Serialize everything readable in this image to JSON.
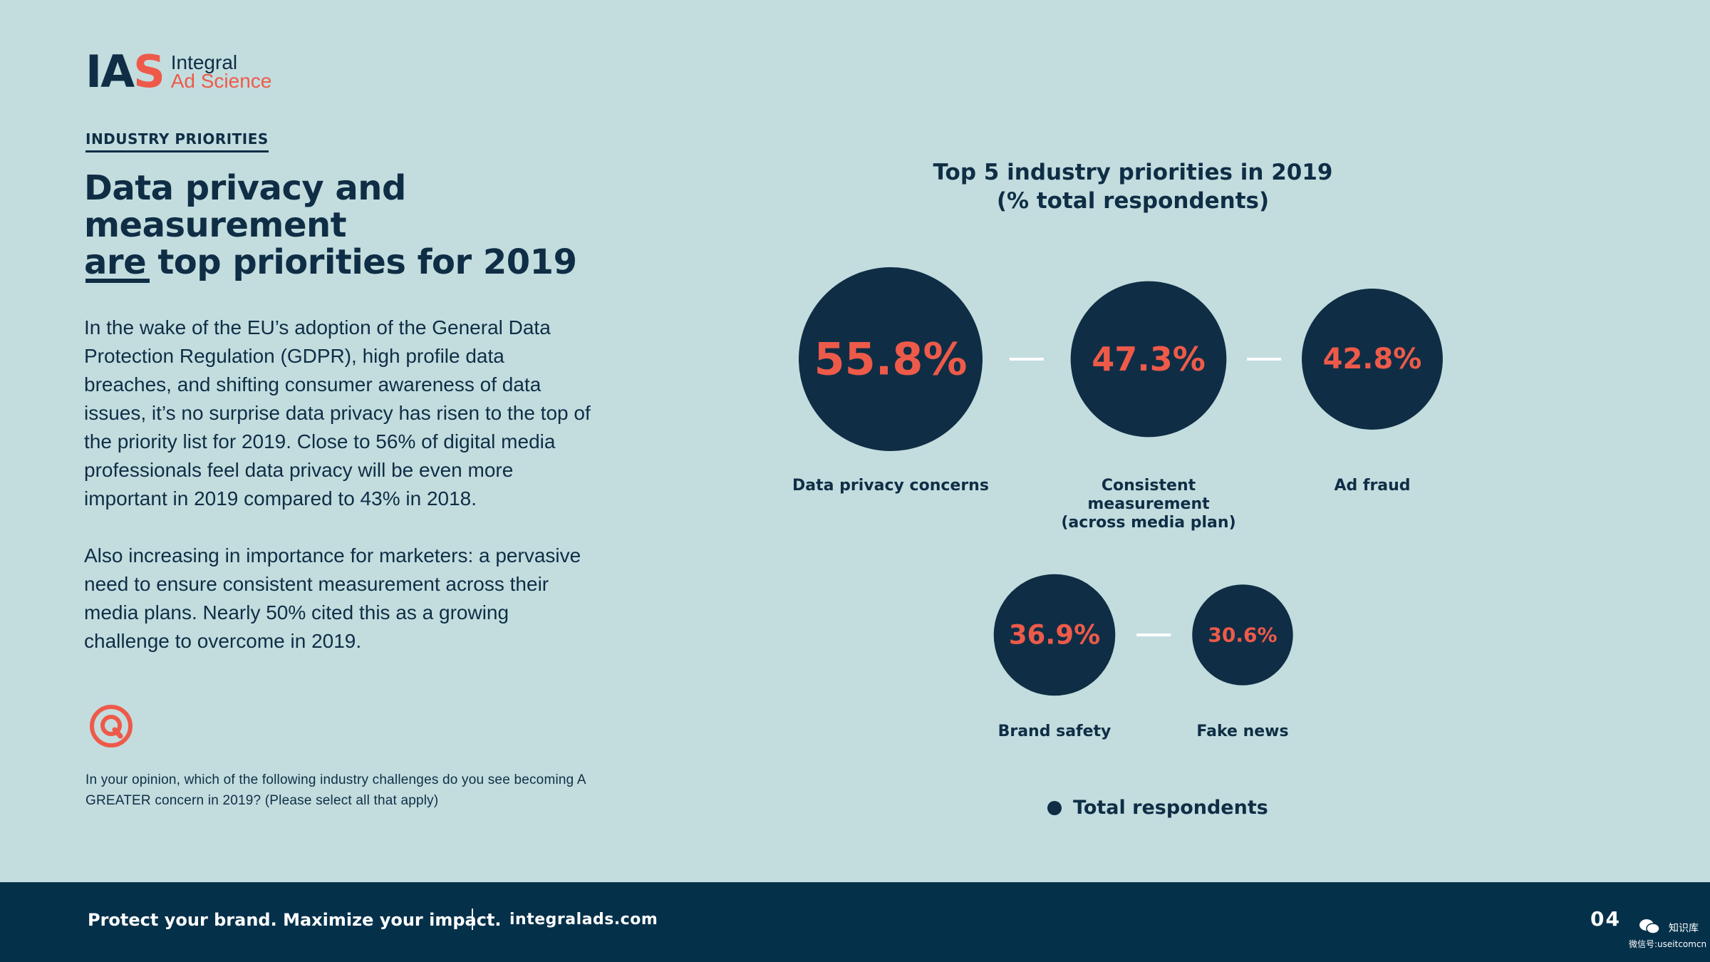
{
  "brand": {
    "logo_mark": "IAS",
    "logo_line1": "Integral",
    "logo_line2": "Ad Science"
  },
  "section_label": "INDUSTRY PRIORITIES",
  "headline": {
    "line1": "Data privacy and measurement",
    "line2": "are top priorities for 2019"
  },
  "body": {
    "paragraph1": "In the wake of the EU’s adoption of the General Data Protection Regulation (GDPR), high profile data breaches, and shifting consumer awareness of data issues, it’s no surprise data privacy has risen to the top of the priority list for 2019. Close to 56% of digital media professionals feel data privacy will be even more important in 2019 compared to 43% in 2018.",
    "paragraph2": "Also increasing in importance for marketers: a pervasive need to ensure consistent measurement across their media plans. Nearly 50% cited this as a growing challenge to overcome in 2019."
  },
  "question_icon": "q-circle-icon",
  "footnote": "In your opinion, which of the following industry challenges do you see becoming A GREATER concern in 2019? (Please select all that apply)",
  "chart_data": {
    "type": "bubble",
    "title": "Top 5 industry priorities in 2019",
    "subtitle": "(% total respondents)",
    "unit": "%",
    "categories": [
      "Data privacy concerns",
      "Consistent measurement (across media plan)",
      "Ad fraud",
      "Brand safety",
      "Fake news"
    ],
    "category_label_lines": [
      [
        "Data privacy concerns"
      ],
      [
        "Consistent",
        "measurement",
        "(across media plan)"
      ],
      [
        "Ad fraud"
      ],
      [
        "Brand safety"
      ],
      [
        "Fake news"
      ]
    ],
    "values": [
      55.8,
      47.3,
      42.8,
      36.9,
      30.6
    ],
    "value_labels": [
      "55.8%",
      "47.3%",
      "42.8%",
      "36.9%",
      "30.6%"
    ],
    "rows": [
      [
        0,
        1,
        2
      ],
      [
        3,
        4
      ]
    ],
    "series": [
      {
        "name": "Total respondents",
        "values": [
          55.8,
          47.3,
          42.8,
          36.9,
          30.6
        ]
      }
    ],
    "legend": "bottom-center",
    "colors": {
      "bubble": "#0f2e45",
      "value_text": "#ee5a4a",
      "connector": "#ffffff",
      "label": "#0f2e45"
    }
  },
  "legend": {
    "label": "Total respondents"
  },
  "footer": {
    "tagline": "Protect your brand. Maximize your impact.",
    "website": "integralads.com",
    "page_number": "04",
    "watermark_name": "知识库",
    "watermark_id": "微信号:useitcomcn"
  },
  "colors": {
    "background": "#c3dddf",
    "navy": "#0f2e45",
    "coral": "#ee5a4a",
    "footer": "#04304a"
  }
}
